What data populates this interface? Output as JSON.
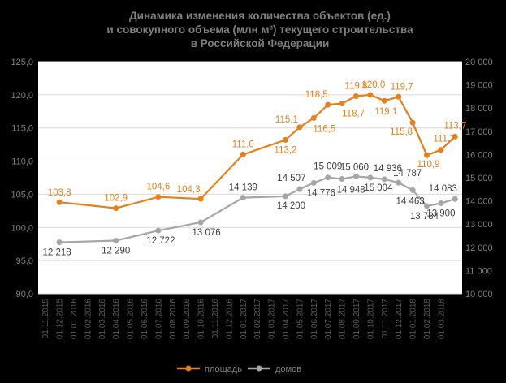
{
  "chart_data": {
    "type": "line",
    "title_lines": [
      "Динамика изменения количества объектов (ед.)",
      "и совокупного объема (млн м²) текущего строительства",
      "в Российской Федерации"
    ],
    "x_ticks": [
      "01.11.2015",
      "01.12.2015",
      "01.01.2016",
      "01.02.2016",
      "01.03.2016",
      "01.04.2016",
      "01.05.2016",
      "01.06.2016",
      "01.07.2016",
      "01.08.2016",
      "01.09.2016",
      "01.10.2016",
      "01.11.2016",
      "01.12.2016",
      "01.01.2017",
      "01.02.2017",
      "01.03.2017",
      "01.04.2017",
      "01.05.2017",
      "01.06.2017",
      "01.07.2017",
      "01.08.2017",
      "01.09.2017",
      "01.10.2017",
      "01.11.2017",
      "01.12.2017",
      "01.01.2018",
      "01.02.2018",
      "01.03.2018"
    ],
    "y_left": {
      "ylim": [
        90,
        125
      ],
      "ticks": [
        "90,0",
        "95,0",
        "100,0",
        "105,0",
        "110,0",
        "115,0",
        "120,0",
        "125,0"
      ]
    },
    "y_right": {
      "ylim": [
        10000,
        20000
      ],
      "ticks": [
        "10 000",
        "11 000",
        "12 000",
        "13 000",
        "14 000",
        "15 000",
        "16 000",
        "17 000",
        "18 000",
        "19 000",
        "20 000"
      ]
    },
    "series": [
      {
        "name": "площадь",
        "axis": "left",
        "color": "#e5801c",
        "points": [
          {
            "x": "01.12.2015",
            "y": 103.8,
            "label": "103,8"
          },
          {
            "x": "01.04.2016",
            "y": 102.9,
            "label": "102,9"
          },
          {
            "x": "01.07.2016",
            "y": 104.6,
            "label": "104,6"
          },
          {
            "x": "01.10.2016",
            "y": 104.3,
            "label": "104,3"
          },
          {
            "x": "01.01.2017",
            "y": 111.0,
            "label": "111,0"
          },
          {
            "x": "01.04.2017",
            "y": 113.2,
            "label": "113,2"
          },
          {
            "x": "01.05.2017",
            "y": 115.1,
            "label": "115,1"
          },
          {
            "x": "01.06.2017",
            "y": 116.5,
            "label": "116,5"
          },
          {
            "x": "01.07.2017",
            "y": 118.5,
            "label": "118,5"
          },
          {
            "x": "01.08.2017",
            "y": 118.7,
            "label": "118,7"
          },
          {
            "x": "01.09.2017",
            "y": 119.8,
            "label": "119,8"
          },
          {
            "x": "01.10.2017",
            "y": 120.0,
            "label": "120,0"
          },
          {
            "x": "01.11.2017",
            "y": 119.1,
            "label": "119,1"
          },
          {
            "x": "01.12.2017",
            "y": 119.7,
            "label": "119,7"
          },
          {
            "x": "01.01.2018",
            "y": 115.8,
            "label": "115,8"
          },
          {
            "x": "01.02.2018",
            "y": 110.9,
            "label": "110,9"
          },
          {
            "x": "01.03.2018",
            "y": 111.7,
            "label": "111,7"
          },
          {
            "x": "01.04.2018",
            "y": 113.7,
            "label": "113,7"
          }
        ]
      },
      {
        "name": "домов",
        "axis": "right",
        "color": "#a6a6a6",
        "points": [
          {
            "x": "01.12.2015",
            "y": 12218,
            "label": "12 218"
          },
          {
            "x": "01.04.2016",
            "y": 12290,
            "label": "12 290"
          },
          {
            "x": "01.07.2016",
            "y": 12722,
            "label": "12 722"
          },
          {
            "x": "01.10.2016",
            "y": 13076,
            "label": "13 076"
          },
          {
            "x": "01.01.2017",
            "y": 14139,
            "label": "14 139"
          },
          {
            "x": "01.04.2017",
            "y": 14200,
            "label": "14 200"
          },
          {
            "x": "01.05.2017",
            "y": 14507,
            "label": "14 507"
          },
          {
            "x": "01.06.2017",
            "y": 14776,
            "label": "14 776"
          },
          {
            "x": "01.07.2017",
            "y": 15009,
            "label": "15 009"
          },
          {
            "x": "01.08.2017",
            "y": 14948,
            "label": "14 948"
          },
          {
            "x": "01.09.2017",
            "y": 15060,
            "label": "15 060"
          },
          {
            "x": "01.10.2017",
            "y": 15004,
            "label": "15 004"
          },
          {
            "x": "01.11.2017",
            "y": 14936,
            "label": "14 936"
          },
          {
            "x": "01.12.2017",
            "y": 14787,
            "label": "14 787"
          },
          {
            "x": "01.01.2018",
            "y": 14463,
            "label": "14 463"
          },
          {
            "x": "01.02.2018",
            "y": 13784,
            "label": "13 784"
          },
          {
            "x": "01.03.2018",
            "y": 13900,
            "label": "13 900"
          },
          {
            "x": "01.04.2018",
            "y": 14083,
            "label": "14 083"
          }
        ]
      }
    ],
    "grid": true,
    "legend": "bottom-center"
  }
}
